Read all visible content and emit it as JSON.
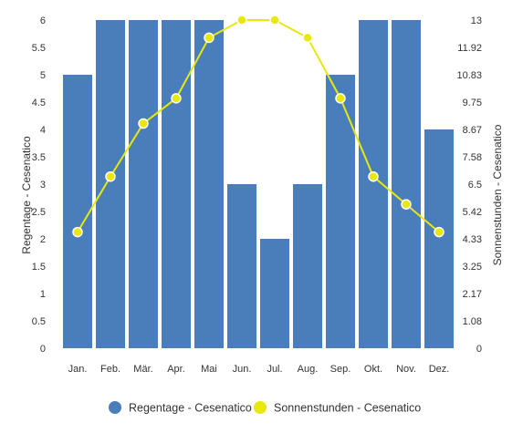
{
  "chart_data": {
    "type": "bar",
    "categories": [
      "Jan.",
      "Feb.",
      "Mär.",
      "Apr.",
      "Mai",
      "Jun.",
      "Jul.",
      "Aug.",
      "Sep.",
      "Okt.",
      "Nov.",
      "Dez."
    ],
    "series": [
      {
        "name": "Regentage - Cesenatico",
        "type": "bar",
        "axis": "left",
        "color": "#4a7ebb",
        "values": [
          5,
          6,
          6,
          6,
          6,
          3,
          2,
          3,
          5,
          6,
          6,
          4
        ]
      },
      {
        "name": "Sonnenstunden - Cesenatico",
        "type": "line",
        "axis": "right",
        "color": "#e8e80e",
        "values": [
          4.6,
          6.8,
          8.9,
          9.9,
          12.3,
          13.0,
          13.0,
          12.3,
          9.9,
          6.8,
          5.7,
          4.6
        ]
      }
    ],
    "ylabel_left": "Regentage - Cesenatico",
    "ylabel_right": "Sonnenstunden - Cesenatico",
    "ylim_left": [
      0,
      6
    ],
    "ylim_right": [
      0,
      13
    ],
    "yticks_left": [
      "0",
      "0.5",
      "1",
      "1.5",
      "2",
      "2.5",
      "3",
      "3.5",
      "4",
      "4.5",
      "5",
      "5.5",
      "6"
    ],
    "yticks_right": [
      "0",
      "1.08",
      "2.17",
      "3.25",
      "4.33",
      "5.42",
      "6.5",
      "7.58",
      "8.67",
      "9.75",
      "10.83",
      "11.92",
      "13"
    ],
    "grid": false,
    "legend_position": "bottom-center"
  }
}
